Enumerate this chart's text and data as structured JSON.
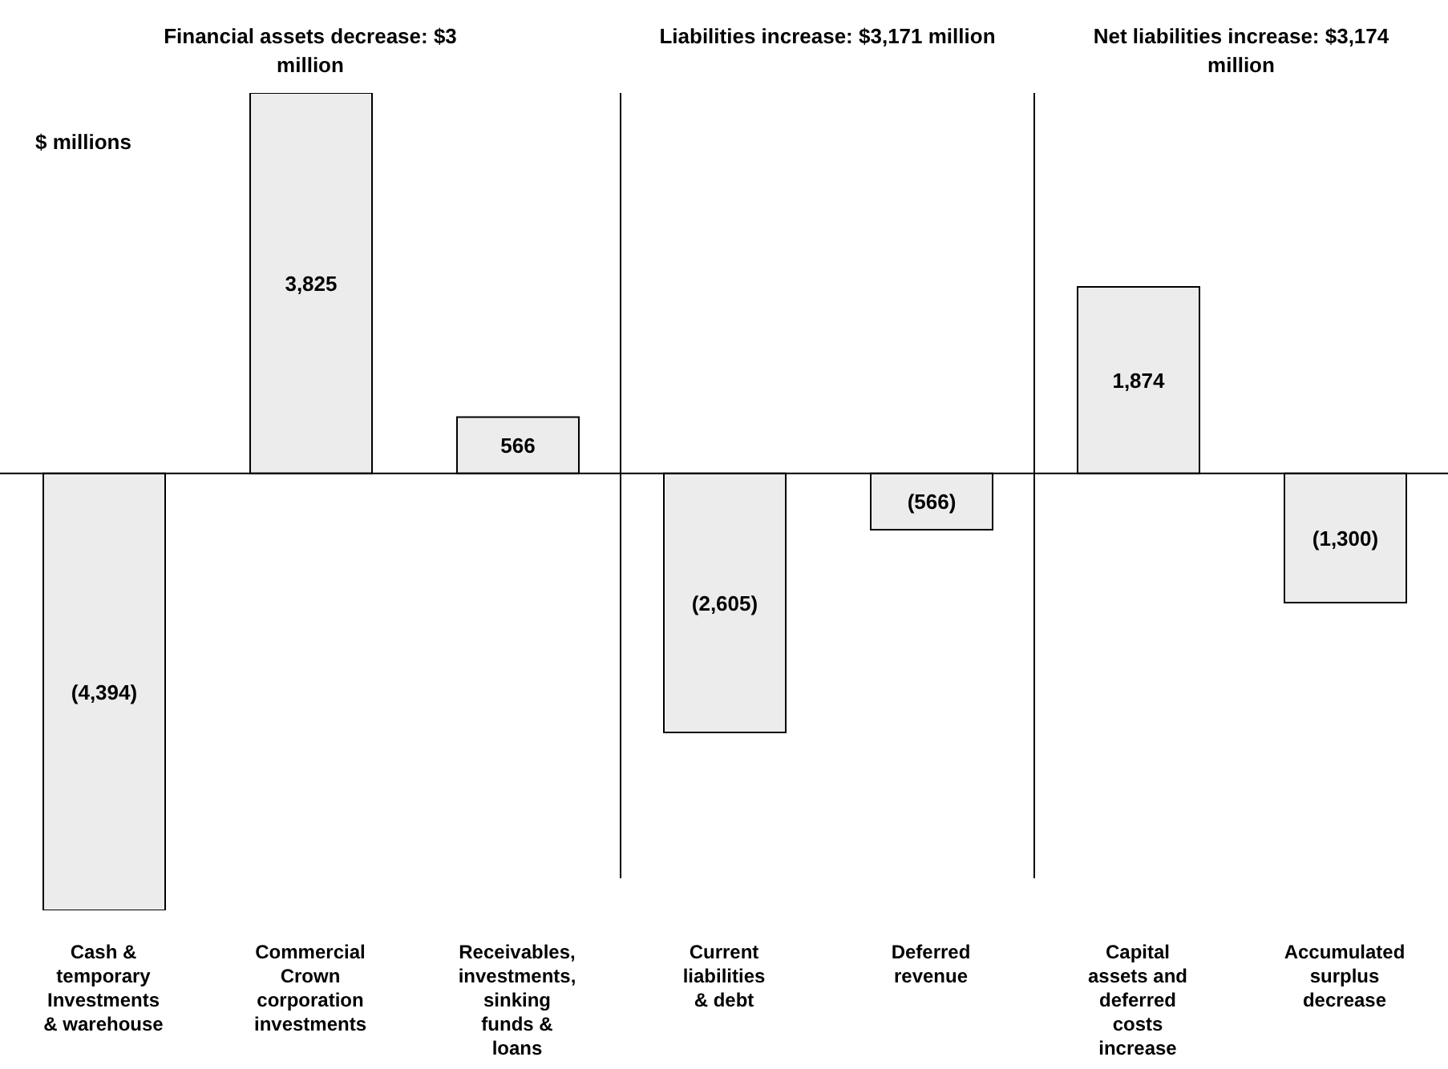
{
  "chart_data": {
    "type": "bar",
    "ylabel": "$ millions",
    "annotations": [
      "Financial assets decrease: $3 million",
      "Liabilities increase: $3,171 million",
      "Net liabilities increase: $3,174 million"
    ],
    "categories": [
      "Cash & temporary Investments & warehouse",
      "Commercial Crown corporation investments",
      "Receivables, investments, sinking funds & loans",
      "Current liabilities & debt",
      "Deferred revenue",
      "Capital assets and deferred costs increase",
      "Accumulated surplus decrease"
    ],
    "values": [
      -4394,
      3825,
      566,
      -2605,
      -566,
      1874,
      -1300
    ],
    "value_labels": [
      "(4,394)",
      "3,825",
      "566",
      "(2,605)",
      "(566)",
      "1,874",
      "(1,300)"
    ],
    "color": "#ececec"
  }
}
